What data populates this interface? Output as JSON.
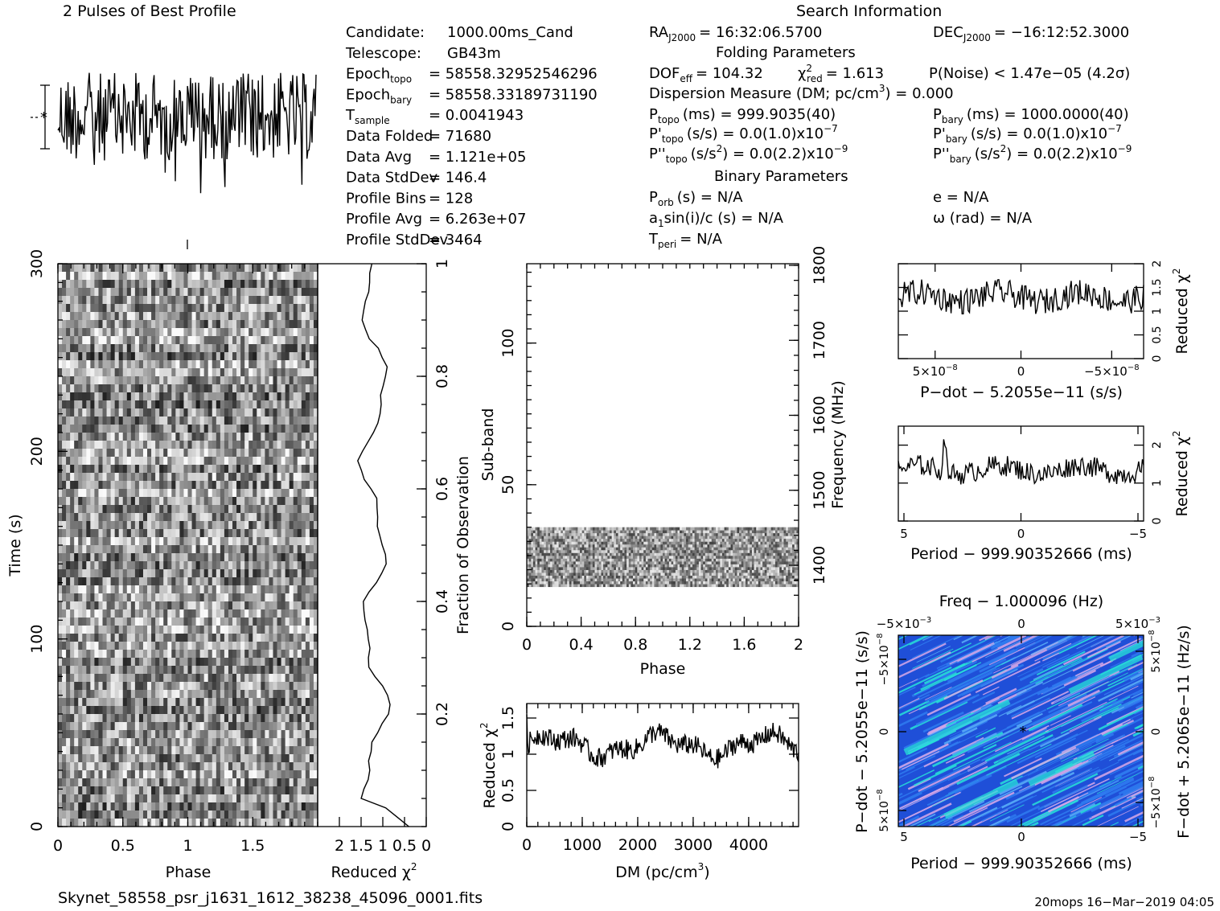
{
  "header": {
    "profile_title": "2 Pulses of Best Profile",
    "search_title": "Search Information",
    "folding_title": "Folding Parameters",
    "binary_title": "Binary Parameters"
  },
  "info_left": [
    {
      "label": "Candidate:",
      "value": "1000.00ms_Cand"
    },
    {
      "label": "Telescope:",
      "value": "GB43m"
    },
    {
      "label": "Epoch",
      "sub": "topo",
      "value": "= 58558.32952546296"
    },
    {
      "label": "Epoch",
      "sub": "bary",
      "value": "= 58558.33189731190"
    },
    {
      "label": "T",
      "sub": "sample",
      "value": "=   0.0041943"
    },
    {
      "label": "Data Folded",
      "value": "=   71680"
    },
    {
      "label": "Data Avg",
      "value": "=   1.121e+05"
    },
    {
      "label": "Data StdDev",
      "value": "=   146.4"
    },
    {
      "label": "Profile Bins",
      "value": "=   128"
    },
    {
      "label": "Profile Avg",
      "value": "=   6.263e+07"
    },
    {
      "label": "Profile StdDev",
      "value": "=   3464"
    }
  ],
  "search": {
    "ra": "RA",
    "ra_sub": "J2000",
    "ra_value": "= 16:32:06.5700",
    "dec": "DEC",
    "dec_sub": "J2000",
    "dec_value": "= −16:12:52.3000",
    "dof_label": "DOF",
    "dof_sub": "eff",
    "dof_value": "= 104.32",
    "chi_label": "χ",
    "chi_sup": "2",
    "chi_sub": "red",
    "chi_value": "= 1.613",
    "pnoise": "P(Noise) < 1.47e−05  (4.2σ)",
    "dm": "Dispersion Measure (DM; pc/cm",
    "dm_sup": "3",
    "dm_value": ") = 0.000",
    "ptopo": "P",
    "ptopo_sub": "topo",
    "ptopo_value": "(ms) =  999.9035(40)",
    "pbary": "P",
    "pbary_sub": "bary",
    "pbary_value": "(ms) =  1000.0000(40)",
    "pdtopo": "P'",
    "pdtopo_sub": "topo",
    "pdtopo_value": "(s/s) = 0.0(1.0)x10",
    "pdtopo_exp": "−7",
    "pdbary": "P'",
    "pdbary_sub": "bary",
    "pdbary_value": "(s/s) = 0.0(1.0)x10",
    "pdbary_exp": "−7",
    "pddtopo": "P''",
    "pddtopo_sub": "topo",
    "pddtopo_value": "(s/s",
    "pddtopo_sup": "2",
    "pddtopo_tail": ") = 0.0(2.2)x10",
    "pddtopo_exp": "−9",
    "pddbary": "P''",
    "pddbary_sub": "bary",
    "pddbary_value": "(s/s",
    "pddbary_sup": "2",
    "pddbary_tail": ") = 0.0(2.2)x10",
    "pddbary_exp": "−9",
    "porb": "P",
    "porb_sub": "orb",
    "porb_value": "(s) = N/A",
    "ecc": "e = N/A",
    "asini": "a",
    "asini_sub": "1",
    "asini_value": "sin(i)/c (s) = N/A",
    "omega": "ω (rad) = N/A",
    "tperi": "T",
    "tperi_sub": "peri",
    "tperi_value": "= N/A"
  },
  "footer": {
    "filename": "Skynet_58558_psr_j1631_1612_38238_45096_0001.fits",
    "stamp": "20mops 16−Mar−2019 04:05"
  },
  "chart_data": [
    {
      "name": "profile",
      "type": "line",
      "title": "2 Pulses of Best Profile",
      "x_range": [
        0,
        2
      ],
      "note_points": 256
    },
    {
      "name": "time-phase",
      "type": "heatmap",
      "xlabel": "Phase",
      "ylabel": "Time (s)",
      "x_ticks": [
        "0",
        "0.5",
        "1",
        "1.5"
      ],
      "y_ticks": [
        "0",
        "100",
        "200",
        "300"
      ],
      "xlim": [
        0,
        2
      ],
      "ylim": [
        0,
        300
      ],
      "right_ylabel": "Fraction of Observation",
      "right_ticks": [
        "0.2",
        "0.4",
        "0.6",
        "0.8",
        "1"
      ]
    },
    {
      "name": "time-chi2",
      "type": "line",
      "xlabel": "Reduced χ",
      "xlabel_sup": "2",
      "x_ticks": [
        "2",
        "1.5",
        "1",
        "0.5",
        "0"
      ],
      "xlim": [
        2.5,
        0
      ]
    },
    {
      "name": "subband-phase",
      "type": "heatmap",
      "xlabel": "Phase",
      "ylabel": "Sub-band",
      "x_ticks": [
        "0",
        "0.4",
        "0.8",
        "1.2",
        "1.6",
        "2"
      ],
      "y_ticks": [
        "0",
        "50",
        "100"
      ],
      "xlim": [
        0,
        2
      ],
      "ylim": [
        0,
        128
      ],
      "band_range": [
        14,
        35
      ],
      "right_ylabel": "Frequency (MHz)",
      "right_ticks": [
        "1400",
        "1500",
        "1600",
        "1700",
        "1800"
      ]
    },
    {
      "name": "dm-chi2",
      "type": "line",
      "xlabel": "DM (pc/cm",
      "xlabel_sup": "3",
      "xlabel_tail": ")",
      "ylabel": "Reduced χ",
      "ylabel_sup": "2",
      "x_ticks": [
        "0",
        "1000",
        "2000",
        "3000",
        "4000"
      ],
      "y_ticks": [
        "0",
        "0.5",
        "1",
        "1.5"
      ],
      "xlim": [
        0,
        4900
      ],
      "ylim": [
        0,
        1.7
      ]
    },
    {
      "name": "pdot-chi2",
      "type": "line",
      "xlabel": "P−dot − 5.2055e−11 (s/s)",
      "ylabel": "Reduced χ",
      "ylabel_sup": "2",
      "x_ticks": [
        "5×10",
        "0",
        "−5×10"
      ],
      "x_tick_exp": "−8",
      "y_ticks": [
        "0",
        "0.5",
        "1",
        "1.5",
        "2"
      ],
      "ylim": [
        0,
        2
      ]
    },
    {
      "name": "period-chi2",
      "type": "line",
      "xlabel": "Period − 999.90352666 (ms)",
      "ylabel": "Reduced χ",
      "ylabel_sup": "2",
      "x_ticks": [
        "5",
        "0",
        "−5"
      ],
      "y_ticks": [
        "0",
        "1",
        "2"
      ],
      "ylim": [
        0,
        2.5
      ]
    },
    {
      "name": "period-pdot",
      "type": "heatmap",
      "title": "Freq − 1.000096 (Hz)",
      "top_ticks": [
        "−5×10",
        "0",
        "5×10"
      ],
      "top_tick_exp": "−3",
      "xlabel": "Period − 999.90352666 (ms)",
      "x_ticks": [
        "5",
        "0",
        "−5"
      ],
      "ylabel": "P−dot − 5.2055e−11 (s/s)",
      "y_ticks": [
        "5×10",
        "0",
        "−5×10"
      ],
      "y_tick_exp": "−8",
      "right_ylabel": "F−dot + 5.2065e−11 (Hz/s)",
      "right_ticks": [
        "−5×10",
        "0",
        "5×10"
      ],
      "right_tick_exp": "−8",
      "colors": {
        "low": "#1f4fd8",
        "mid": "#2f7bf0",
        "high": "#28e0d8",
        "streak": "#d8a8e8"
      }
    }
  ]
}
